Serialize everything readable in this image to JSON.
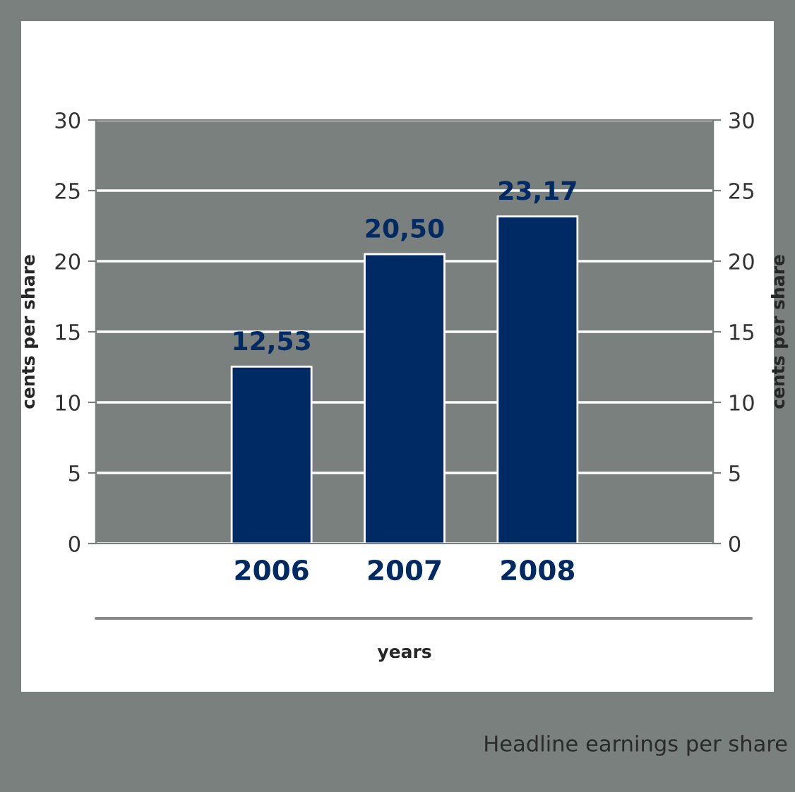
{
  "chart_data": {
    "type": "bar",
    "title": "Headline earnings per share",
    "categories": [
      "2006",
      "2007",
      "2008"
    ],
    "values": [
      12.53,
      20.5,
      23.17
    ],
    "value_labels": [
      "12,53",
      "20,50",
      "23,17"
    ],
    "color": "#002a64",
    "xlabel": "years",
    "ylabel": "cents per share",
    "y2label": "cents per share",
    "ylim": [
      0,
      30
    ],
    "yticks": [
      0,
      5,
      10,
      15,
      20,
      25,
      30
    ],
    "y2lim": [
      0,
      30
    ],
    "y2ticks": [
      0,
      5,
      10,
      15,
      20,
      25,
      30
    ],
    "grid": "y",
    "legend": false
  }
}
